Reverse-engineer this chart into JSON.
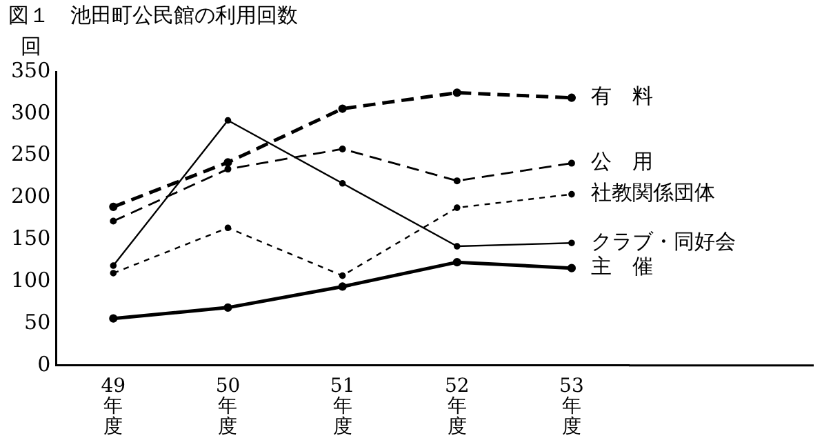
{
  "chart_data": {
    "type": "line",
    "title": "図１　池田町公民館の利用回数",
    "ylabel": "回",
    "categories": [
      "49年度",
      "50年度",
      "51年度",
      "52年度",
      "53年度"
    ],
    "series": [
      {
        "name": "有　料",
        "color": "#000000",
        "line_style": "dashed",
        "values": [
          189,
          242,
          306,
          325,
          319
        ]
      },
      {
        "name": "公　用",
        "color": "#000000",
        "line_style": "dashed",
        "values": [
          172,
          234,
          258,
          220,
          241
        ]
      },
      {
        "name": "社教関係団体",
        "color": "#000000",
        "line_style": "dotted",
        "values": [
          110,
          164,
          107,
          188,
          204
        ]
      },
      {
        "name": "クラブ・同好会",
        "color": "#000000",
        "line_style": "solid",
        "values": [
          119,
          292,
          217,
          142,
          146
        ]
      },
      {
        "name": "主　催",
        "color": "#000000",
        "line_style": "solid",
        "values": [
          56,
          69,
          94,
          123,
          116
        ]
      }
    ],
    "ylim": [
      0,
      350
    ],
    "yticks": [
      0,
      50,
      100,
      150,
      200,
      250,
      300,
      350
    ],
    "grid": false,
    "legend": false,
    "marker": "circle"
  }
}
